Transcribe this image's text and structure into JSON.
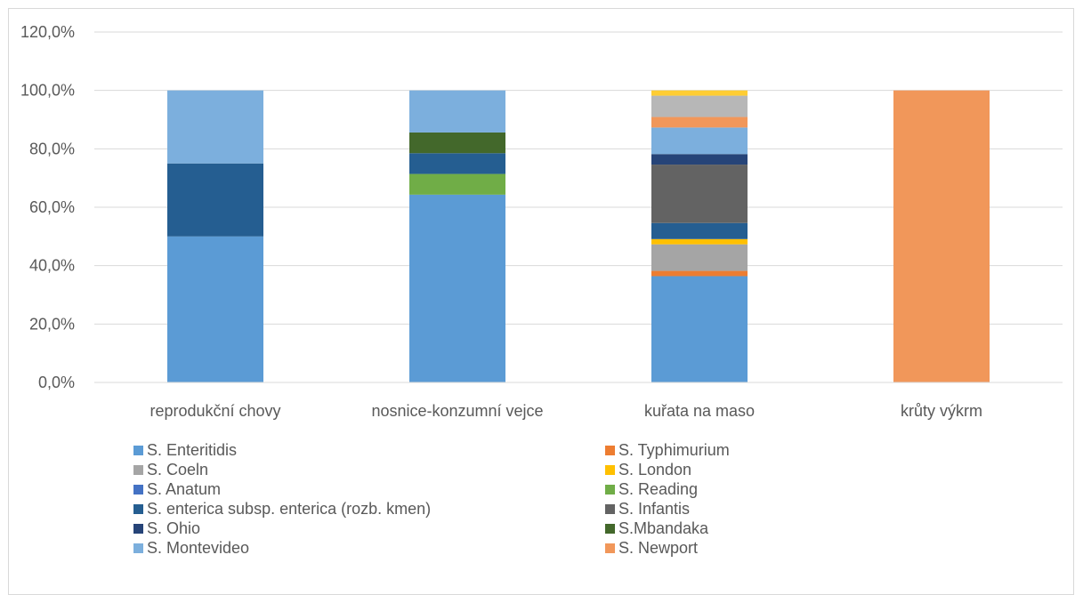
{
  "chart_data": {
    "type": "stacked-bar",
    "title": "",
    "xlabel": "",
    "ylabel": "",
    "ylim": [
      0,
      120
    ],
    "yticks": [
      "0,0%",
      "20,0%",
      "40,0%",
      "60,0%",
      "80,0%",
      "100,0%",
      "120,0%"
    ],
    "ytick_values": [
      0,
      20,
      40,
      60,
      80,
      100,
      120
    ],
    "grid": true,
    "legend_position": "bottom",
    "categories": [
      "reprodukční chovy",
      "nosnice-konzumní vejce",
      "kuřata na maso",
      "krůty výkrm"
    ],
    "series": [
      {
        "name": "S. Enteritidis",
        "color": "#5b9bd5",
        "values": [
          50.0,
          64.3,
          36.4,
          0
        ]
      },
      {
        "name": "S. Typhimurium",
        "color": "#ed7d31",
        "values": [
          0,
          0,
          1.8,
          0
        ]
      },
      {
        "name": "S. Coeln",
        "color": "#a5a5a5",
        "values": [
          0,
          0,
          9.1,
          0
        ]
      },
      {
        "name": "S. London",
        "color": "#ffc000",
        "values": [
          0,
          0,
          1.8,
          0
        ]
      },
      {
        "name": "S. Anatum",
        "color": "#4472c4",
        "values": [
          0,
          0,
          0,
          0
        ]
      },
      {
        "name": "S. Reading",
        "color": "#70ad47",
        "values": [
          0,
          7.1,
          0,
          0
        ]
      },
      {
        "name": "S. enterica subsp. enterica (rozb. kmen)",
        "color": "#255e91",
        "values": [
          25.0,
          7.1,
          5.5,
          0
        ]
      },
      {
        "name": "S. Infantis",
        "color": "#636363",
        "values": [
          0,
          0,
          20.0,
          0
        ]
      },
      {
        "name": "S. Ohio",
        "color": "#264478",
        "values": [
          0,
          0,
          3.6,
          0
        ]
      },
      {
        "name": "S.Mbandaka",
        "color": "#43682b",
        "values": [
          0,
          7.1,
          0,
          0
        ]
      },
      {
        "name": "S. Montevideo",
        "color": "#7cafdd",
        "values": [
          25.0,
          14.4,
          9.1,
          0
        ]
      },
      {
        "name": "S. Newport",
        "color": "#f1975a",
        "values": [
          0,
          0,
          3.6,
          100.0
        ]
      },
      {
        "name": "",
        "color": "#b7b7b7",
        "values": [
          0,
          0,
          7.3,
          0
        ]
      },
      {
        "name": "",
        "color": "#ffcd33",
        "values": [
          0,
          0,
          1.8,
          0
        ]
      }
    ]
  }
}
